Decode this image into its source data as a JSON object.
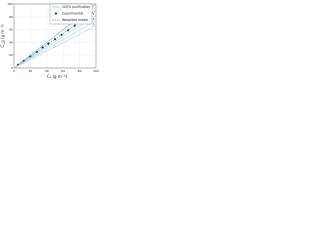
{
  "chart_data": {
    "type": "line",
    "x_label": "Cₛ (g m⁻³)",
    "y_label": "C_g (g m⁻³)",
    "xlim": [
      0,
      100
    ],
    "ylim": [
      0,
      100
    ],
    "xticks": [
      0,
      20,
      40,
      60,
      80,
      100
    ],
    "yticks": [
      0,
      20,
      40,
      60,
      80,
      100
    ],
    "grid": true,
    "legend": "upper right",
    "series": [
      {
        "name": "100% purification",
        "type": "line",
        "color": "#4fb8e0",
        "x": [
          0,
          100
        ],
        "values": [
          0,
          100
        ]
      },
      {
        "name": "Experimental",
        "type": "scatter",
        "color": "#1a1a1a",
        "x": [
          5,
          12,
          20,
          28,
          35,
          42,
          50,
          58,
          66,
          74
        ],
        "values": [
          5,
          11,
          18,
          25,
          32,
          38,
          45,
          52,
          59,
          66
        ]
      },
      {
        "name": "Weighted model",
        "type": "dashed",
        "color": "#333333",
        "x": [
          0,
          100
        ],
        "values": [
          0,
          90
        ]
      },
      {
        "name": "1",
        "type": "line",
        "color": "#9fd6ee",
        "x": [
          0,
          100
        ],
        "values": [
          0,
          82
        ]
      },
      {
        "name": "2",
        "type": "line",
        "color": "#9fd6ee",
        "x": [
          0,
          100
        ],
        "values": [
          0,
          74
        ]
      },
      {
        "name": "3",
        "type": "line",
        "color": "#9fd6ee",
        "x": [
          0,
          100
        ],
        "values": [
          0,
          66
        ]
      }
    ]
  }
}
